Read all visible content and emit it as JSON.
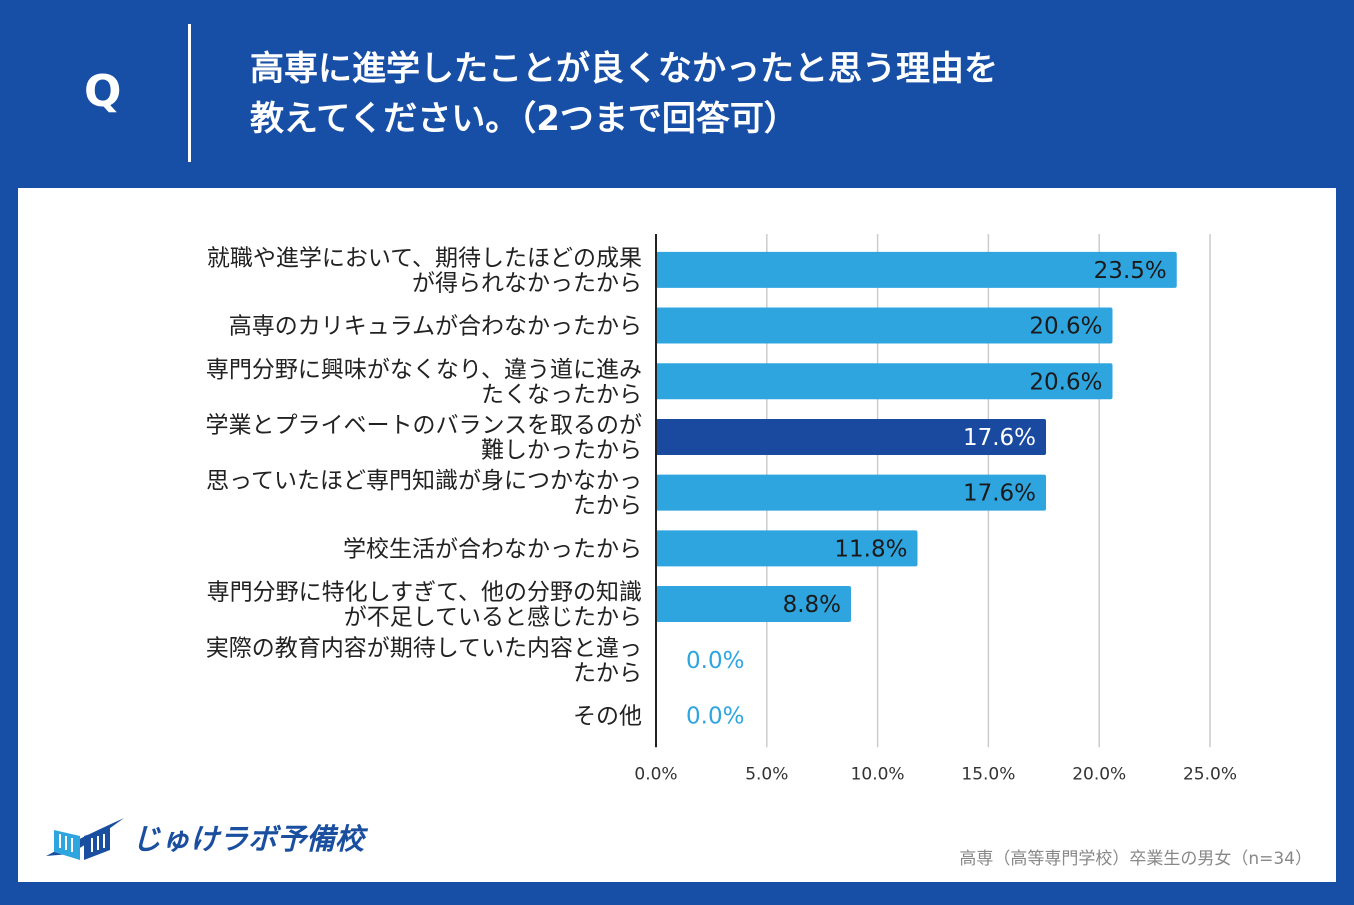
{
  "header": {
    "q_letter": "Q",
    "question_line1": "高専に進学したことが良くなかったと思う理由を",
    "question_line2": "教えてください。（2つまで回答可）"
  },
  "colors": {
    "background": "#174ea6",
    "bar": "#2fa5e0",
    "bar_highlight": "#1a4aa0",
    "grid": "#cccccc",
    "zero_label": "#2fa5e0"
  },
  "chart_data": {
    "type": "bar",
    "orientation": "horizontal",
    "categories": [
      [
        "就職や進学において、期待したほどの成果",
        "が得られなかったから"
      ],
      [
        "高専のカリキュラムが合わなかったから"
      ],
      [
        "専門分野に興味がなくなり、違う道に進み",
        "たくなったから"
      ],
      [
        "学業とプライベートのバランスを取るのが",
        "難しかったから"
      ],
      [
        "思っていたほど専門知識が身につかなかっ",
        "たから"
      ],
      [
        "学校生活が合わなかったから"
      ],
      [
        "専門分野に特化しすぎて、他の分野の知識",
        "が不足していると感じたから"
      ],
      [
        "実際の教育内容が期待していた内容と違っ",
        "たから"
      ],
      [
        "その他"
      ]
    ],
    "values": [
      23.5,
      20.6,
      20.6,
      17.6,
      17.6,
      11.8,
      8.8,
      0.0,
      0.0
    ],
    "value_labels": [
      "23.5%",
      "20.6%",
      "20.6%",
      "17.6%",
      "17.6%",
      "11.8%",
      "8.8%",
      "0.0%",
      "0.0%"
    ],
    "highlight_index": 3,
    "xlim": [
      0,
      25
    ],
    "x_ticks": [
      "0.0%",
      "5.0%",
      "10.0%",
      "15.0%",
      "20.0%",
      "25.0%"
    ],
    "x_tick_values": [
      0,
      5,
      10,
      15,
      20,
      25
    ],
    "grid": true
  },
  "logo": {
    "text": "じゅけラボ予備校",
    "icon": "open-book-swoosh-icon"
  },
  "footnote": "高専（高等専門学校）卒業生の男女（n=34）"
}
